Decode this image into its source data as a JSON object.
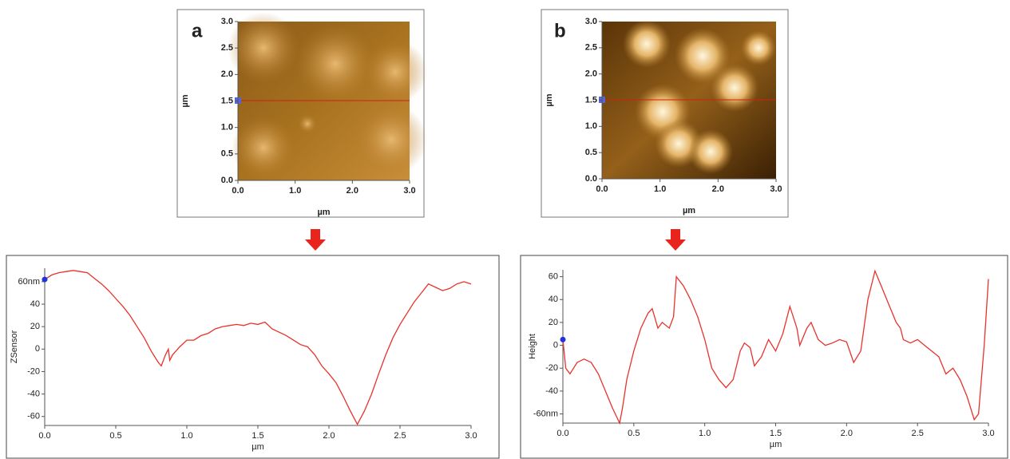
{
  "chart_data": [
    {
      "type": "image",
      "title": "a",
      "xlabel": "µm",
      "ylabel": "µm",
      "xlim": [
        0,
        3
      ],
      "ylim": [
        0,
        3
      ],
      "xticks": [
        {
          "value": 0,
          "label": "0.0"
        },
        {
          "value": 1,
          "label": "1.0"
        },
        {
          "value": 2,
          "label": "2.0"
        },
        {
          "value": 3,
          "label": "3.0"
        }
      ],
      "yticks": [
        {
          "value": 0,
          "label": "0.0"
        },
        0.5,
        {
          "value": 1,
          "label": "1.0"
        },
        1.5,
        {
          "value": 2,
          "label": "2.0"
        },
        2.5,
        {
          "value": 3,
          "label": "3.0"
        }
      ]
    },
    {
      "type": "image",
      "title": "b",
      "xlabel": "µm",
      "ylabel": "µm",
      "xlim": [
        0,
        3
      ],
      "ylim": [
        0,
        3
      ],
      "xticks": [
        {
          "value": 0,
          "label": "0.0"
        },
        {
          "value": 1,
          "label": "1.0"
        },
        {
          "value": 2,
          "label": "2.0"
        },
        {
          "value": 3,
          "label": "3.0"
        }
      ],
      "yticks": [
        {
          "value": 0,
          "label": "0.0"
        },
        0.5,
        {
          "value": 1,
          "label": "1.0"
        },
        1.5,
        {
          "value": 2,
          "label": "2.0"
        },
        2.5,
        {
          "value": 3,
          "label": "3.0"
        }
      ]
    },
    {
      "type": "line",
      "xlabel": "µm",
      "ylabel": "ZSensor",
      "color": "#e8322c",
      "xlim": [
        0,
        3
      ],
      "ylim": [
        -68,
        72
      ],
      "xticks": [
        {
          "value": 0,
          "label": "0.0"
        },
        0.5,
        {
          "value": 1,
          "label": "1.0"
        },
        1.5,
        {
          "value": 2,
          "label": "2.0"
        },
        2.5,
        {
          "value": 3,
          "label": "3.0"
        }
      ],
      "yticks": [
        -60,
        -40,
        -20,
        0,
        20,
        40,
        {
          "value": 60,
          "label": "60nm"
        }
      ],
      "x": [
        0,
        0.05,
        0.1,
        0.15,
        0.2,
        0.25,
        0.3,
        0.35,
        0.4,
        0.45,
        0.5,
        0.55,
        0.6,
        0.65,
        0.7,
        0.75,
        0.8,
        0.82,
        0.85,
        0.87,
        0.88,
        0.9,
        0.95,
        1.0,
        1.05,
        1.1,
        1.15,
        1.2,
        1.25,
        1.3,
        1.35,
        1.4,
        1.45,
        1.5,
        1.55,
        1.6,
        1.65,
        1.7,
        1.75,
        1.8,
        1.85,
        1.9,
        1.95,
        2.0,
        2.05,
        2.1,
        2.15,
        2.2,
        2.25,
        2.3,
        2.35,
        2.4,
        2.45,
        2.5,
        2.55,
        2.6,
        2.65,
        2.7,
        2.75,
        2.8,
        2.85,
        2.9,
        2.95,
        3.0
      ],
      "values": [
        62,
        66,
        68,
        69,
        70,
        69,
        68,
        63,
        58,
        52,
        45,
        38,
        30,
        20,
        10,
        -2,
        -12,
        -15,
        -5,
        0,
        -10,
        -5,
        2,
        8,
        8,
        12,
        14,
        18,
        20,
        21,
        22,
        21,
        23,
        22,
        24,
        18,
        15,
        12,
        8,
        4,
        2,
        -5,
        -15,
        -22,
        -30,
        -42,
        -55,
        -67,
        -55,
        -40,
        -22,
        -5,
        10,
        22,
        32,
        42,
        50,
        58,
        55,
        52,
        54,
        58,
        60,
        58
      ]
    },
    {
      "type": "line",
      "xlabel": "µm",
      "ylabel": "Height",
      "color": "#e8322c",
      "xlim": [
        0,
        3
      ],
      "ylim": [
        -68,
        66
      ],
      "xticks": [
        {
          "value": 0,
          "label": "0.0"
        },
        0.5,
        {
          "value": 1,
          "label": "1.0"
        },
        1.5,
        {
          "value": 2,
          "label": "2.0"
        },
        2.5,
        {
          "value": 3,
          "label": "3.0"
        }
      ],
      "yticks": [
        {
          "value": -60,
          "label": "-60nm"
        },
        -40,
        -20,
        0,
        20,
        40,
        60
      ],
      "x": [
        0,
        0.02,
        0.05,
        0.1,
        0.15,
        0.2,
        0.25,
        0.3,
        0.35,
        0.4,
        0.42,
        0.45,
        0.5,
        0.55,
        0.6,
        0.63,
        0.67,
        0.7,
        0.75,
        0.78,
        0.8,
        0.85,
        0.9,
        0.95,
        1.0,
        1.05,
        1.1,
        1.15,
        1.2,
        1.25,
        1.28,
        1.32,
        1.35,
        1.4,
        1.45,
        1.5,
        1.55,
        1.6,
        1.65,
        1.67,
        1.72,
        1.75,
        1.8,
        1.85,
        1.9,
        1.95,
        2.0,
        2.05,
        2.1,
        2.15,
        2.2,
        2.25,
        2.3,
        2.35,
        2.38,
        2.4,
        2.45,
        2.5,
        2.55,
        2.6,
        2.65,
        2.7,
        2.75,
        2.8,
        2.85,
        2.9,
        2.93,
        2.97,
        3.0
      ],
      "values": [
        5,
        -20,
        -25,
        -15,
        -12,
        -15,
        -25,
        -40,
        -55,
        -68,
        -55,
        -30,
        -5,
        15,
        28,
        32,
        15,
        20,
        15,
        25,
        60,
        52,
        40,
        25,
        5,
        -20,
        -30,
        -37,
        -30,
        -5,
        2,
        -2,
        -18,
        -10,
        5,
        -5,
        10,
        34,
        15,
        0,
        15,
        20,
        5,
        0,
        2,
        5,
        3,
        -15,
        -5,
        40,
        65,
        50,
        35,
        20,
        15,
        5,
        2,
        5,
        0,
        -5,
        -10,
        -25,
        -20,
        -30,
        -45,
        -65,
        -60,
        0,
        58
      ]
    }
  ]
}
